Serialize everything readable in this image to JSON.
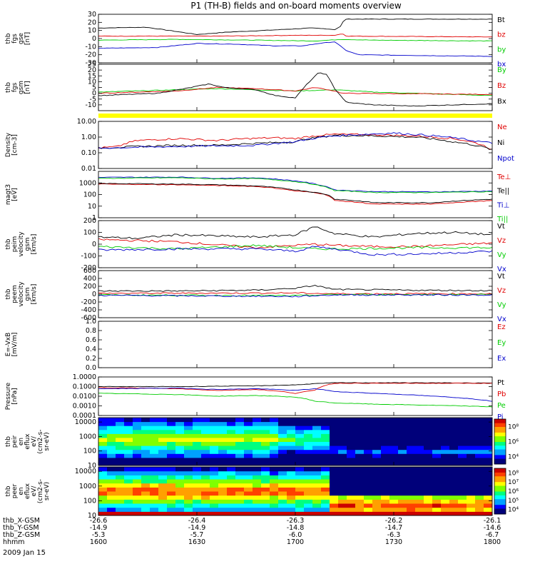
{
  "title": "P1 (TH-B) fields and on-board moments overview",
  "date_label": "2009 Jan 15",
  "colors": {
    "black": "#000000",
    "red": "#e00000",
    "green": "#00cc00",
    "blue": "#0000cc",
    "yellow": "#ffff00"
  },
  "chart_data": {
    "type": "line",
    "x_range": [
      "16:00",
      "18:00"
    ],
    "panels": [
      {
        "id": "fgs",
        "ylabel": [
          "thb",
          "fgs",
          "gse",
          "[nT]"
        ],
        "ylim": [
          -30,
          30
        ],
        "ticks": [
          "30",
          "20",
          "10",
          "0",
          "-10",
          "-20",
          "-30"
        ],
        "tick_values": [
          30,
          20,
          10,
          0,
          -10,
          -20,
          -30
        ],
        "series": [
          {
            "name": "Bt",
            "color": "#000000"
          },
          {
            "name": "bz",
            "color": "#e00000"
          },
          {
            "name": "by",
            "color": "#00cc00"
          },
          {
            "name": "bx",
            "color": "#0000cc"
          }
        ]
      },
      {
        "id": "fgs_gsm",
        "ylabel": [
          "thb",
          "fgs",
          "gsm",
          "[nT]"
        ],
        "ylim": [
          -15,
          25
        ],
        "ticks": [
          "25",
          "20",
          "15",
          "10",
          "5",
          "0",
          "-5",
          "-10"
        ],
        "tick_values": [
          25,
          20,
          15,
          10,
          5,
          0,
          -5,
          -10
        ],
        "series": [
          {
            "name": "By",
            "color": "#00cc00"
          },
          {
            "name": "Bz",
            "color": "#e00000"
          },
          {
            "name": "Bx",
            "color": "#000000"
          }
        ]
      },
      {
        "id": "density",
        "ylabel": [
          "Density",
          "[cm-3]"
        ],
        "log": true,
        "ylim": [
          0.01,
          10
        ],
        "ticks": [
          "10.00",
          "1.00",
          "0.10",
          "0.01"
        ],
        "tick_values": [
          10,
          1,
          0.1,
          0.01
        ],
        "series": [
          {
            "name": "Ne",
            "color": "#e00000"
          },
          {
            "name": "Ni",
            "color": "#000000"
          },
          {
            "name": "Npot",
            "color": "#0000cc"
          }
        ]
      },
      {
        "id": "temp",
        "ylabel": [
          "magt3",
          "[eV]"
        ],
        "log": true,
        "ylim": [
          1,
          10000
        ],
        "ticks": [
          "1000",
          "100",
          "10",
          "1"
        ],
        "tick_values": [
          1000,
          100,
          10,
          1
        ],
        "series": [
          {
            "name": "Te⊥",
            "color": "#e00000"
          },
          {
            "name": "Te||",
            "color": "#000000"
          },
          {
            "name": "Ti⊥",
            "color": "#0000cc"
          },
          {
            "name": "Ti||",
            "color": "#00cc00"
          }
        ]
      },
      {
        "id": "vel1",
        "ylabel": [
          "thb",
          "peim",
          "velocity",
          "gsm",
          "[km/s]"
        ],
        "ylim": [
          -200,
          200
        ],
        "ticks": [
          "200",
          "100",
          "0",
          "-100",
          "-200"
        ],
        "tick_values": [
          200,
          100,
          0,
          -100,
          -200
        ],
        "series": [
          {
            "name": "Vt",
            "color": "#000000"
          },
          {
            "name": "Vz",
            "color": "#e00000"
          },
          {
            "name": "Vy",
            "color": "#00cc00"
          },
          {
            "name": "Vx",
            "color": "#0000cc"
          }
        ]
      },
      {
        "id": "vel2",
        "ylabel": [
          "thb",
          "peem",
          "velocity",
          "gsm",
          "[km/s]"
        ],
        "ylim": [
          -600,
          600
        ],
        "ticks": [
          "600",
          "400",
          "200",
          "0",
          "-200",
          "-400",
          "-600"
        ],
        "tick_values": [
          600,
          400,
          200,
          0,
          -200,
          -400,
          -600
        ],
        "series": [
          {
            "name": "Vt",
            "color": "#000000"
          },
          {
            "name": "Vz",
            "color": "#e00000"
          },
          {
            "name": "Vy",
            "color": "#00cc00"
          },
          {
            "name": "Vx",
            "color": "#0000cc"
          }
        ]
      },
      {
        "id": "efield",
        "ylabel": [
          "E=-VxB",
          "[mV/m]"
        ],
        "ylim": [
          0,
          1
        ],
        "ticks": [
          "1.0",
          "0.8",
          "0.6",
          "0.4",
          "0.2",
          "0.0"
        ],
        "tick_values": [
          1,
          0.8,
          0.6,
          0.4,
          0.2,
          0
        ],
        "series": [
          {
            "name": "Ez",
            "color": "#e00000"
          },
          {
            "name": "Ey",
            "color": "#00cc00"
          },
          {
            "name": "Ex",
            "color": "#0000cc"
          }
        ]
      },
      {
        "id": "pressure",
        "ylabel": [
          "Pressure",
          "[nPa]"
        ],
        "log": true,
        "ylim": [
          0.0001,
          1
        ],
        "ticks": [
          "1.0000",
          "0.1000",
          "0.0100",
          "0.0010",
          "0.0001"
        ],
        "tick_values": [
          1,
          0.1,
          0.01,
          0.001,
          0.0001
        ],
        "series": [
          {
            "name": "Pt",
            "color": "#000000"
          },
          {
            "name": "Pb",
            "color": "#e00000"
          },
          {
            "name": "Pe",
            "color": "#00cc00"
          },
          {
            "name": "Pi",
            "color": "#0000cc"
          }
        ]
      },
      {
        "id": "ion_spec",
        "type": "heatmap",
        "ylabel": [
          "thb",
          "peir",
          "en",
          "eflux",
          "eV/",
          "(cm2-s-",
          "sr-eV)"
        ],
        "log": true,
        "ylim": [
          10,
          20000
        ],
        "ticks": [
          "10000",
          "1000",
          "100",
          "10"
        ],
        "tick_values": [
          10000,
          1000,
          100,
          10
        ],
        "colorbar": {
          "ticks": [
            "10⁸",
            "10⁶",
            "10⁴"
          ],
          "tick_values": [
            8,
            6,
            4
          ],
          "range": [
            3,
            9
          ]
        }
      },
      {
        "id": "el_spec",
        "type": "heatmap",
        "ylabel": [
          "thb",
          "peer",
          "en",
          "eflux",
          "eV/",
          "(cm2-s-",
          "sr-eV)"
        ],
        "log": true,
        "ylim": [
          10,
          20000
        ],
        "ticks": [
          "10000",
          "1000",
          "100",
          "10"
        ],
        "tick_values": [
          10000,
          1000,
          100,
          10
        ],
        "colorbar": {
          "ticks": [
            "10⁸",
            "10⁷",
            "10⁶",
            "10⁵",
            "10⁴"
          ],
          "tick_values": [
            8,
            7,
            6,
            5,
            4
          ],
          "range": [
            3.5,
            8.5
          ]
        }
      }
    ],
    "xaxis_rows": [
      {
        "label": "thb_X-GSM",
        "values": [
          "-26.6",
          "-26.4",
          "-26.3",
          "-26.2",
          "-26.1"
        ]
      },
      {
        "label": "thb_Y-GSM",
        "values": [
          "-14.9",
          "-14.9",
          "-14.8",
          "-14.7",
          "-14.6"
        ]
      },
      {
        "label": "thb_Z-GSM",
        "values": [
          "-5.3",
          "-5.7",
          "-6.0",
          "-6.3",
          "-6.7"
        ]
      },
      {
        "label": "hhmm",
        "values": [
          "1600",
          "1630",
          "1700",
          "1730",
          "1800"
        ]
      }
    ]
  }
}
